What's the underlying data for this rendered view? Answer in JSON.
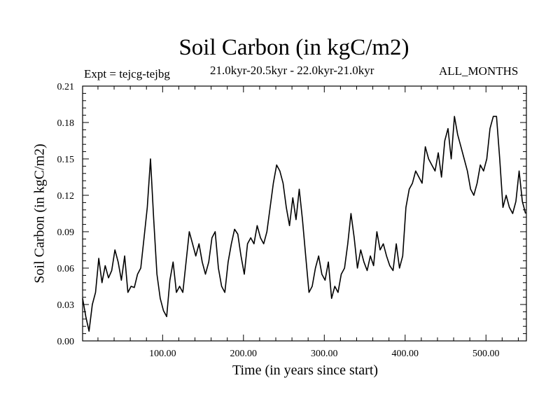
{
  "chart_data": {
    "type": "line",
    "title": "Soil Carbon (in kgC/m2)",
    "subtitle": "21.0kyr-20.5kyr - 22.0kyr-21.0kyr",
    "experiment": "Expt = tejcg-tejbg",
    "period": "ALL_MONTHS",
    "xlabel": "Time (in years since start)",
    "ylabel": "Soil Carbon (in kgC/m2)",
    "xlim": [
      1,
      550
    ],
    "ylim": [
      0.0,
      0.21
    ],
    "grid": false,
    "xticks": [
      100,
      200,
      300,
      400,
      500
    ],
    "xtick_labels": [
      "100.00",
      "200.00",
      "300.00",
      "400.00",
      "500.00"
    ],
    "yticks": [
      0.0,
      0.03,
      0.06,
      0.09,
      0.12,
      0.15,
      0.18,
      0.21
    ],
    "ytick_labels": [
      "0.00",
      "0.03",
      "0.06",
      "0.09",
      "0.12",
      "0.15",
      "0.18",
      "0.21"
    ],
    "series": [
      {
        "name": "Soil Carbon",
        "x": [
          1,
          5,
          9,
          13,
          17,
          21,
          25,
          29,
          33,
          37,
          41,
          45,
          49,
          53,
          57,
          61,
          65,
          69,
          73,
          77,
          81,
          85,
          89,
          93,
          97,
          101,
          105,
          109,
          113,
          117,
          121,
          125,
          129,
          133,
          137,
          141,
          145,
          149,
          153,
          157,
          161,
          165,
          169,
          173,
          177,
          181,
          185,
          189,
          193,
          197,
          201,
          205,
          209,
          213,
          217,
          221,
          225,
          229,
          233,
          237,
          241,
          245,
          249,
          253,
          257,
          261,
          265,
          269,
          273,
          277,
          281,
          285,
          289,
          293,
          297,
          301,
          305,
          309,
          313,
          317,
          321,
          325,
          329,
          333,
          337,
          341,
          345,
          349,
          353,
          357,
          361,
          365,
          369,
          373,
          377,
          381,
          385,
          389,
          393,
          397,
          401,
          405,
          409,
          413,
          417,
          421,
          425,
          429,
          433,
          437,
          441,
          445,
          449,
          453,
          457,
          461,
          465,
          469,
          473,
          477,
          481,
          485,
          489,
          493,
          497,
          501,
          505,
          509,
          513,
          517,
          521,
          525,
          529,
          533,
          537,
          541,
          545,
          549
        ],
        "values": [
          0.035,
          0.02,
          0.008,
          0.03,
          0.04,
          0.068,
          0.048,
          0.062,
          0.052,
          0.058,
          0.075,
          0.065,
          0.05,
          0.07,
          0.04,
          0.045,
          0.044,
          0.055,
          0.06,
          0.085,
          0.11,
          0.15,
          0.1,
          0.055,
          0.035,
          0.025,
          0.02,
          0.05,
          0.065,
          0.04,
          0.045,
          0.04,
          0.065,
          0.09,
          0.08,
          0.07,
          0.08,
          0.065,
          0.055,
          0.065,
          0.085,
          0.09,
          0.06,
          0.045,
          0.04,
          0.065,
          0.08,
          0.092,
          0.088,
          0.07,
          0.055,
          0.08,
          0.085,
          0.08,
          0.095,
          0.085,
          0.08,
          0.09,
          0.11,
          0.13,
          0.145,
          0.14,
          0.13,
          0.11,
          0.095,
          0.118,
          0.1,
          0.125,
          0.1,
          0.07,
          0.04,
          0.045,
          0.06,
          0.07,
          0.055,
          0.05,
          0.065,
          0.035,
          0.045,
          0.04,
          0.055,
          0.06,
          0.08,
          0.105,
          0.085,
          0.06,
          0.075,
          0.065,
          0.058,
          0.07,
          0.062,
          0.09,
          0.075,
          0.08,
          0.07,
          0.062,
          0.058,
          0.08,
          0.06,
          0.07,
          0.11,
          0.125,
          0.13,
          0.14,
          0.135,
          0.13,
          0.16,
          0.15,
          0.145,
          0.14,
          0.155,
          0.135,
          0.165,
          0.175,
          0.15,
          0.185,
          0.17,
          0.16,
          0.15,
          0.14,
          0.125,
          0.12,
          0.13,
          0.145,
          0.14,
          0.15,
          0.175,
          0.185,
          0.185,
          0.15,
          0.11,
          0.12,
          0.11,
          0.105,
          0.115,
          0.14,
          0.115,
          0.105
        ]
      }
    ]
  }
}
